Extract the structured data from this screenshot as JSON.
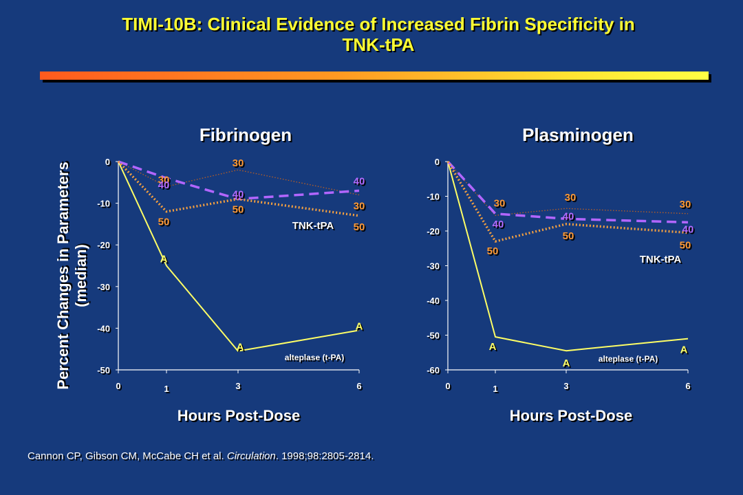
{
  "title": {
    "line1": "TIMI-10B: Clinical Evidence of Increased Fibrin Specificity in",
    "line2": "TNK-tPA"
  },
  "y_axis_label": {
    "line1": "Percent Changes in Parameters",
    "line2": "(median)"
  },
  "citation": {
    "authors": "Cannon CP, Gibson CM, McCabe CH et al.",
    "journal": "Circulation",
    "details": ". 1998;98:2805-2814."
  },
  "colors": {
    "background": "#163a7c",
    "title": "#ffff33",
    "alteplase": "#ffff66",
    "dose40": "#b266ff",
    "dose30": "#c06020",
    "dose50": "#f5a040",
    "label_orange": "#ff9933",
    "label_purple": "#b56bff",
    "grid_text": "#ffffff"
  },
  "chart_data": [
    {
      "type": "line",
      "title": "Fibrinogen",
      "xlabel": "Hours Post-Dose",
      "ylabel": "Percent Changes in Parameters (median)",
      "x": [
        0,
        1,
        3,
        6
      ],
      "x_ticks": [
        "0",
        "1",
        "3",
        "6"
      ],
      "y_ticks": [
        "0",
        "-10",
        "-20",
        "-30",
        "-40",
        "-50"
      ],
      "ylim": [
        -50,
        0
      ],
      "series": [
        {
          "name": "A",
          "values": [
            0,
            -25,
            -45.5,
            -40.5
          ],
          "style": "solid",
          "color": "#ffff66",
          "labels": [
            "",
            "A",
            "A",
            "A"
          ]
        },
        {
          "name": "30",
          "values": [
            0,
            -6,
            -2,
            -8
          ],
          "style": "thin-dotted",
          "color": "#c06020",
          "labels": [
            "",
            "30",
            "30",
            "30"
          ]
        },
        {
          "name": "40",
          "values": [
            0,
            -4,
            -9,
            -7
          ],
          "style": "dashed",
          "color": "#b266ff",
          "labels": [
            "",
            "40",
            "40",
            "40"
          ]
        },
        {
          "name": "50",
          "values": [
            0,
            -12,
            -9,
            -13
          ],
          "style": "dotted",
          "color": "#f5a040",
          "labels": [
            "",
            "50",
            "50",
            "50"
          ]
        }
      ],
      "annotations": [
        "TNK-tPA",
        "alteplase (t-PA)"
      ]
    },
    {
      "type": "line",
      "title": "Plasminogen",
      "xlabel": "Hours Post-Dose",
      "x": [
        0,
        1,
        3,
        6
      ],
      "x_ticks": [
        "0",
        "1",
        "3",
        "6"
      ],
      "y_ticks": [
        "0",
        "-10",
        "-20",
        "-30",
        "-40",
        "-50",
        "-60"
      ],
      "ylim": [
        -60,
        0
      ],
      "series": [
        {
          "name": "A",
          "values": [
            0,
            -50.5,
            -54.5,
            -51
          ],
          "style": "solid",
          "color": "#ffff66",
          "labels": [
            "",
            "A",
            "A",
            "A"
          ]
        },
        {
          "name": "30",
          "values": [
            0,
            -15.5,
            -13.5,
            -15
          ],
          "style": "thin-dotted",
          "color": "#c06020",
          "labels": [
            "",
            "30",
            "30",
            "30"
          ]
        },
        {
          "name": "40",
          "values": [
            0,
            -15,
            -16.5,
            -17.5
          ],
          "style": "dashed",
          "color": "#b266ff",
          "labels": [
            "",
            "40",
            "40",
            "40"
          ]
        },
        {
          "name": "50",
          "values": [
            0,
            -23,
            -18,
            -20.5
          ],
          "style": "dotted",
          "color": "#f5a040",
          "labels": [
            "",
            "50",
            "50",
            "50"
          ]
        }
      ],
      "annotations": [
        "TNK-tPA",
        "alteplase (t-PA)"
      ]
    }
  ]
}
